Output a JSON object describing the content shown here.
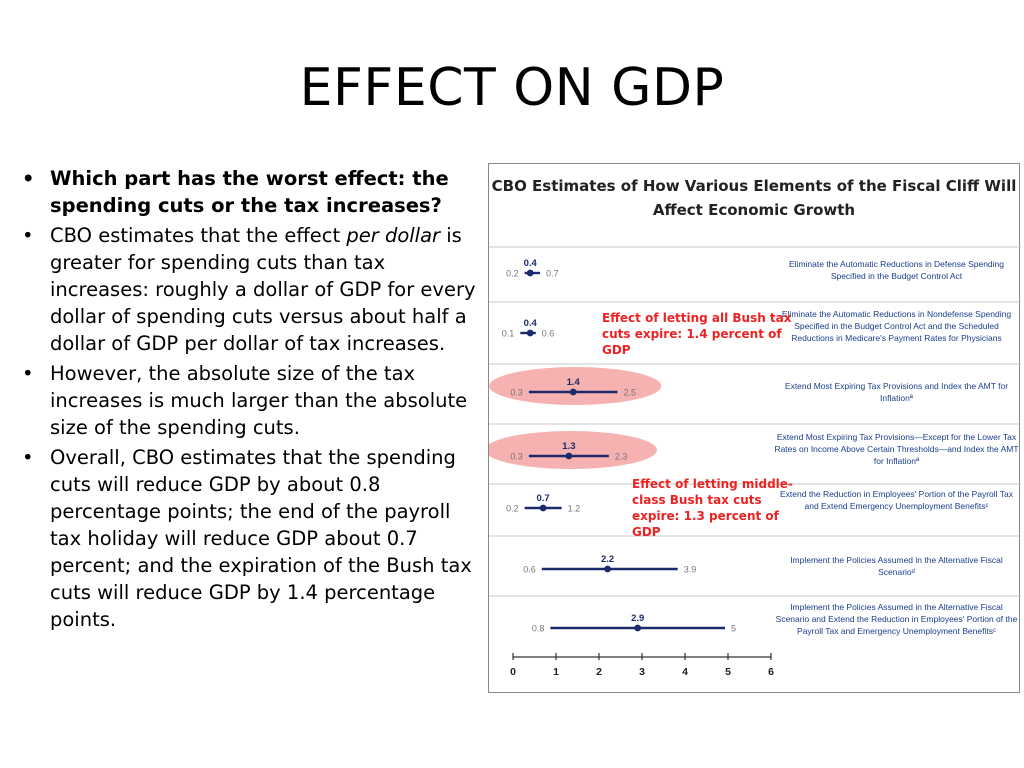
{
  "slide": {
    "title": "EFFECT ON GDP",
    "bullets": [
      {
        "bold": true,
        "text": "Which part has the worst effect: the spending cuts or the tax increases?"
      },
      {
        "bold": false,
        "pre": "CBO estimates that the effect ",
        "em": "per dollar",
        "post": " is greater for spending cuts than tax increases: roughly a dollar of GDP for every dollar of spending cuts versus about half a dollar of GDP per dollar of tax increases."
      },
      {
        "bold": false,
        "text": "However, the absolute size of the tax increases is much larger than the absolute size of the spending cuts."
      },
      {
        "bold": false,
        "text": "Overall, CBO estimates that the spending cuts will reduce GDP by about 0.8 percentage points; the end of the payroll tax holiday will reduce GDP about 0.7 percent; and the expiration of the Bush tax cuts will reduce GDP by 1.4 percentage points."
      }
    ]
  },
  "chart_data": {
    "type": "range",
    "title": "CBO Estimates of How Various Elements of the Fiscal Cliff Will Affect Economic Growth",
    "xlim": [
      0,
      6
    ],
    "xticks": [
      0,
      1,
      2,
      3,
      4,
      5,
      6
    ],
    "rows": [
      {
        "low": 0.2,
        "central": 0.4,
        "high": 0.7,
        "label": "Eliminate the Automatic Reductions in Defense Spending Specified in the Budget Control Act",
        "highlighted": false
      },
      {
        "low": 0.1,
        "central": 0.4,
        "high": 0.6,
        "label": "Eliminate the Automatic Reductions in Nondefense Spending Specified in the Budget Control Act and the Scheduled Reductions in Medicare's Payment Rates for Physicians",
        "highlighted": false
      },
      {
        "low": 0.3,
        "central": 1.4,
        "high": 2.5,
        "label": "Extend Most Expiring Tax Provisions and Index the AMT for Inflationª",
        "highlighted": true
      },
      {
        "low": 0.3,
        "central": 1.3,
        "high": 2.3,
        "label": "Extend Most Expiring Tax Provisions—Except for the Lower Tax Rates on Income Above Certain Thresholds—and Index the AMT for Inflationª",
        "highlighted": true
      },
      {
        "low": 0.2,
        "central": 0.7,
        "high": 1.2,
        "label": "Extend the Reduction in Employees' Portion of the Payroll Tax and Extend Emergency Unemployment Benefitsᶜ",
        "highlighted": false
      },
      {
        "low": 0.6,
        "central": 2.2,
        "high": 3.9,
        "label": "Implement the Policies Assumed in the Alternative Fiscal Scenarioᵈ",
        "highlighted": false
      },
      {
        "low": 0.8,
        "central": 2.9,
        "high": 5.0,
        "label": "Implement the Policies Assumed in the Alternative Fiscal Scenario and Extend the Reduction in Employees' Portion of the Payroll Tax and Emergency Unemployment Benefitsᶜ",
        "highlighted": false
      }
    ],
    "callouts": [
      {
        "text": "Effect of letting all Bush tax cuts expire: 1.4 percent of GDP"
      },
      {
        "text": "Effect of letting middle-class Bush tax cuts expire: 1.3 percent of GDP"
      }
    ],
    "colors": {
      "range_line": "#1b2a6b",
      "value_text": "#1b2a6b",
      "bound_text": "#777777",
      "highlight": "#f4a3a3",
      "callout": "#e22222",
      "description": "#1a3e8a"
    }
  }
}
